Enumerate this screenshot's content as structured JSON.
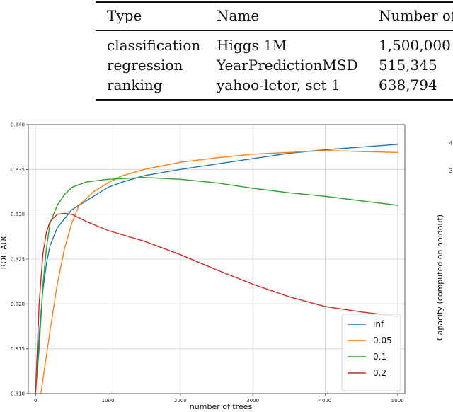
{
  "table": {
    "headers": [
      "Type",
      "Name",
      "Number of"
    ],
    "rows": [
      [
        "classification",
        "Higgs 1M",
        "1,500,000"
      ],
      [
        "regression",
        "YearPredictionMSD",
        "515,345"
      ],
      [
        "ranking",
        "yahoo-letor, set 1",
        "638,794"
      ]
    ]
  },
  "chart_data": {
    "type": "line",
    "xlabel": "number of trees",
    "ylabel": "ROC AUC",
    "xlim": [
      -100,
      5100
    ],
    "ylim": [
      0.81,
      0.84
    ],
    "x_ticks": [
      "0",
      "1000",
      "2000",
      "3000",
      "4000",
      "5000"
    ],
    "y_ticks": [
      "0.810",
      "0.815",
      "0.820",
      "0.825",
      "0.830",
      "0.835",
      "0.840"
    ],
    "grid": true,
    "legend_position": "bottom-right",
    "series": [
      {
        "name": "inf",
        "color": "#1f77b4",
        "points": [
          [
            0,
            0.81
          ],
          [
            50,
            0.8165
          ],
          [
            100,
            0.8215
          ],
          [
            150,
            0.8245
          ],
          [
            200,
            0.8265
          ],
          [
            300,
            0.8285
          ],
          [
            400,
            0.8295
          ],
          [
            500,
            0.8305
          ],
          [
            600,
            0.831
          ],
          [
            800,
            0.832
          ],
          [
            1000,
            0.833
          ],
          [
            1200,
            0.8336
          ],
          [
            1500,
            0.8343
          ],
          [
            2000,
            0.835
          ],
          [
            2500,
            0.8356
          ],
          [
            3000,
            0.8362
          ],
          [
            3500,
            0.8368
          ],
          [
            4000,
            0.8372
          ],
          [
            4500,
            0.8375
          ],
          [
            5000,
            0.8378
          ]
        ]
      },
      {
        "name": "0.05",
        "color": "#ff7f0e",
        "points": [
          [
            0,
            0.806
          ],
          [
            100,
            0.8115
          ],
          [
            200,
            0.817
          ],
          [
            300,
            0.8222
          ],
          [
            400,
            0.8262
          ],
          [
            500,
            0.829
          ],
          [
            600,
            0.831
          ],
          [
            800,
            0.8325
          ],
          [
            1000,
            0.8335
          ],
          [
            1200,
            0.8343
          ],
          [
            1500,
            0.835
          ],
          [
            2000,
            0.8358
          ],
          [
            2500,
            0.8363
          ],
          [
            3000,
            0.8367
          ],
          [
            3500,
            0.8369
          ],
          [
            4000,
            0.8371
          ],
          [
            4500,
            0.837
          ],
          [
            5000,
            0.8369
          ]
        ]
      },
      {
        "name": "0.1",
        "color": "#2ca02c",
        "points": [
          [
            0,
            0.81
          ],
          [
            50,
            0.815
          ],
          [
            100,
            0.822
          ],
          [
            150,
            0.8262
          ],
          [
            200,
            0.829
          ],
          [
            300,
            0.831
          ],
          [
            400,
            0.8322
          ],
          [
            500,
            0.833
          ],
          [
            700,
            0.8336
          ],
          [
            1000,
            0.8339
          ],
          [
            1500,
            0.8341
          ],
          [
            2000,
            0.8339
          ],
          [
            2500,
            0.8335
          ],
          [
            3000,
            0.8329
          ],
          [
            3500,
            0.8324
          ],
          [
            4000,
            0.832
          ],
          [
            4500,
            0.8315
          ],
          [
            5000,
            0.831
          ]
        ]
      },
      {
        "name": "0.2",
        "color": "#d62728",
        "points": [
          [
            0,
            0.81
          ],
          [
            50,
            0.82
          ],
          [
            100,
            0.8255
          ],
          [
            150,
            0.828
          ],
          [
            200,
            0.8292
          ],
          [
            300,
            0.83
          ],
          [
            400,
            0.8301
          ],
          [
            500,
            0.83
          ],
          [
            700,
            0.8292
          ],
          [
            1000,
            0.8282
          ],
          [
            1500,
            0.827
          ],
          [
            2000,
            0.8255
          ],
          [
            2500,
            0.8238
          ],
          [
            3000,
            0.8222
          ],
          [
            3500,
            0.8208
          ],
          [
            4000,
            0.8197
          ],
          [
            4500,
            0.8191
          ],
          [
            5000,
            0.8186
          ]
        ]
      }
    ]
  },
  "side_panel": {
    "ylabel": "Capacity (computed on holdout)",
    "ticks": [
      "4",
      "3"
    ]
  }
}
